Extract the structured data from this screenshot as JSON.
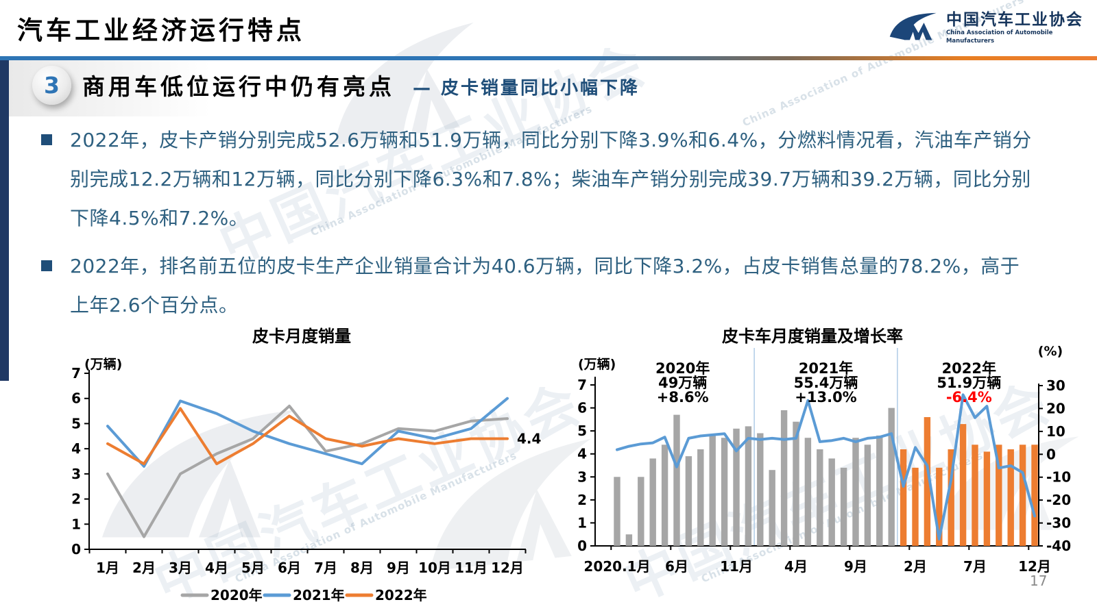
{
  "slide": {
    "title": "汽车工业经济运行特点",
    "page_number": "17"
  },
  "logo": {
    "name_cn": "中国汽车工业协会",
    "name_en": "China Association of Automobile Manufacturers"
  },
  "section": {
    "number": "3",
    "title": "商用车低位运行中仍有亮点",
    "subtitle": "— 皮卡销量同比小幅下降"
  },
  "bullets": [
    "2022年，皮卡产销分别完成52.6万辆和51.9万辆，同比分别下降3.9%和6.4%，分燃料情况看，汽油车产销分别完成12.2万辆和12万辆，同比分别下降6.3%和7.8%；柴油车产销分别完成39.7万辆和39.2万辆，同比分别下降4.5%和7.2%。",
    "2022年，排名前五位的皮卡生产企业销量合计为40.6万辆，同比下降3.2%，占皮卡销售总量的78.2%，高于上年2.6个百分点。"
  ],
  "watermark": {
    "text_cn": "中国汽车工业协会",
    "text_en": "China Association of Automobile Manufacturers"
  },
  "colors": {
    "accent_blue": "#2E75B5",
    "accent_orange": "#ED7D31",
    "text_blue": "#2E6080",
    "dark_navy": "#1F4E79",
    "negative_red": "#FF0000"
  },
  "chart_data": [
    {
      "id": "pickup-monthly-sales",
      "type": "line",
      "title": "皮卡月度销量",
      "y_axis_label": "(万辆)",
      "ylim": [
        0,
        7
      ],
      "yticks": [
        0,
        1,
        2,
        3,
        4,
        5,
        6,
        7
      ],
      "categories": [
        "1月",
        "2月",
        "3月",
        "4月",
        "5月",
        "6月",
        "7月",
        "8月",
        "9月",
        "10月",
        "11月",
        "12月"
      ],
      "series": [
        {
          "name": "2020年",
          "color": "#A6A6A6",
          "values": [
            3.0,
            0.5,
            3.0,
            3.8,
            4.4,
            5.7,
            3.9,
            4.2,
            4.8,
            4.7,
            5.1,
            5.2
          ]
        },
        {
          "name": "2021年",
          "color": "#5B9BD5",
          "values": [
            4.9,
            3.3,
            5.9,
            5.4,
            4.7,
            4.2,
            3.8,
            3.4,
            4.7,
            4.4,
            4.8,
            6.0
          ]
        },
        {
          "name": "2022年",
          "color": "#ED7D31",
          "values": [
            4.2,
            3.4,
            5.6,
            3.4,
            4.2,
            5.3,
            4.4,
            4.1,
            4.4,
            4.2,
            4.4,
            4.4
          ]
        }
      ],
      "end_label": {
        "text": "4.4",
        "series": "2022年"
      },
      "legend_position": "bottom",
      "grid": false
    },
    {
      "id": "pickup-monthly-sales-and-growth",
      "type": "bar+line",
      "title": "皮卡车月度销量及增长率",
      "y_left_label": "(万辆)",
      "y_right_label": "(%)",
      "ylim_left": [
        0,
        7
      ],
      "yticks_left": [
        0,
        1,
        2,
        3,
        4,
        5,
        6,
        7
      ],
      "ylim_right": [
        -40,
        30
      ],
      "yticks_right": [
        30,
        20,
        10,
        0,
        -10,
        -20,
        -30,
        -40
      ],
      "x_tick_labels": [
        "2020.1月",
        "6月",
        "11月",
        "4月",
        "9月",
        "2月",
        "7月",
        "12月"
      ],
      "x_tick_month_numbers": [
        1,
        6,
        11,
        16,
        21,
        26,
        31,
        36
      ],
      "bars": {
        "name": "皮卡月度销量(万辆)",
        "values": [
          3.0,
          0.5,
          3.0,
          3.8,
          4.4,
          5.7,
          3.9,
          4.2,
          4.8,
          4.7,
          5.1,
          5.2,
          4.9,
          3.3,
          5.9,
          5.4,
          4.7,
          4.2,
          3.8,
          3.4,
          4.7,
          4.4,
          4.8,
          6.0,
          4.2,
          3.4,
          5.6,
          3.4,
          4.2,
          5.3,
          4.4,
          4.1,
          4.4,
          4.2,
          4.4,
          4.4
        ],
        "color_2020_2021": "#A6A6A6",
        "color_2022": "#ED7D31",
        "orange_from_month": 25
      },
      "growth_line": {
        "name": "增长率(%)",
        "color": "#5B9BD5",
        "values": [
          2,
          3.5,
          4.5,
          5,
          7.5,
          -5.5,
          7,
          8,
          8.5,
          9,
          1.5,
          7,
          6.5,
          7,
          6.5,
          7,
          23.5,
          5.5,
          6,
          7,
          5.5,
          7,
          7.5,
          9,
          -14,
          3,
          -5,
          -37,
          -11,
          26,
          16,
          21,
          -6,
          -5,
          -8,
          -27
        ]
      },
      "year_annotations": [
        {
          "year": "2020年",
          "total": "49万辆",
          "growth": "+8.6%",
          "growth_color": "#000000",
          "center_month": 6.5
        },
        {
          "year": "2021年",
          "total": "55.4万辆",
          "growth": "+13.0%",
          "growth_color": "#000000",
          "center_month": 18.5
        },
        {
          "year": "2022年",
          "total": "51.9万辆",
          "growth": "-6.4%",
          "growth_color": "#FF0000",
          "center_month": 30.5
        }
      ],
      "year_separator_after_months": [
        12,
        24
      ],
      "grid": false
    }
  ]
}
